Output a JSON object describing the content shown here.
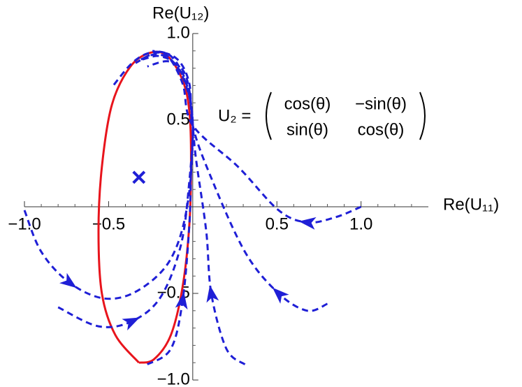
{
  "chart_data": {
    "type": "line",
    "xlabel": "Re(U₁₁)",
    "ylabel": "Re(U₁₂)",
    "xlim": [
      -1.0,
      1.4
    ],
    "ylim": [
      -1.0,
      1.0
    ],
    "xticks": [
      {
        "value": -1.0,
        "label": "−1.0"
      },
      {
        "value": -0.5,
        "label": "−0.5"
      },
      {
        "value": 0.5,
        "label": "0.5"
      },
      {
        "value": 1.0,
        "label": "1.0"
      }
    ],
    "yticks": [
      {
        "value": -1.0,
        "label": "−1.0"
      },
      {
        "value": -0.5,
        "label": "−0.5"
      },
      {
        "value": 0.5,
        "label": "0.5"
      },
      {
        "value": 1.0,
        "label": "1.0"
      }
    ],
    "xminorticks": [
      -0.9,
      -0.8,
      -0.7,
      -0.6,
      -0.4,
      -0.3,
      -0.2,
      -0.1,
      0.1,
      0.2,
      0.3,
      0.4,
      0.6,
      0.7,
      0.8,
      0.9,
      1.1,
      1.2,
      1.3
    ],
    "yminorticks": [
      -0.9,
      -0.8,
      -0.7,
      -0.6,
      -0.4,
      -0.3,
      -0.2,
      -0.1,
      0.1,
      0.2,
      0.3,
      0.4,
      0.6,
      0.7,
      0.8,
      0.9
    ],
    "annotation": {
      "lhs": "U₂ =",
      "matrix": [
        [
          "cos(θ)",
          "−sin(θ)"
        ],
        [
          "sin(θ)",
          "cos(θ)"
        ]
      ]
    },
    "series": [
      {
        "color": "#e8141c",
        "style": "solid",
        "x": [
          -0.32,
          -0.46,
          -0.54,
          -0.56,
          -0.54,
          -0.48,
          -0.37,
          -0.25,
          -0.15,
          -0.06,
          -0.02,
          -0.01,
          -0.02,
          -0.06,
          -0.13,
          -0.23,
          -0.32
        ],
        "y": [
          -0.9,
          -0.74,
          -0.5,
          -0.14,
          0.23,
          0.59,
          0.81,
          0.89,
          0.87,
          0.73,
          0.55,
          0.27,
          -0.1,
          -0.46,
          -0.74,
          -0.88,
          -0.9
        ]
      },
      {
        "color": "#1f1fd6",
        "style": "dashed",
        "arrow": true,
        "x": [
          1.0,
          0.85,
          0.68,
          0.51,
          0.27,
          0,
          -0.06,
          -0.15,
          -0.25,
          -0.36,
          -0.48
        ],
        "y": [
          0,
          -0.06,
          -0.09,
          -0.02,
          0.23,
          0.47,
          0.71,
          0.87,
          0.89,
          0.83,
          0.69
        ]
      },
      {
        "color": "#1f1fd6",
        "style": "dashed",
        "arrow": true,
        "x": [
          0.8,
          0.68,
          0.51,
          0.31,
          0.1,
          0,
          -0.02,
          -0.09,
          -0.21,
          -0.34
        ],
        "y": [
          -0.56,
          -0.6,
          -0.5,
          -0.26,
          0.19,
          0.47,
          0.71,
          0.85,
          0.89,
          0.83
        ]
      },
      {
        "color": "#1f1fd6",
        "style": "dashed",
        "arrow": true,
        "x": [
          0.31,
          0.2,
          0.11,
          0.08,
          0.02,
          0,
          -0.02,
          -0.06,
          -0.15,
          -0.27
        ],
        "y": [
          -0.91,
          -0.82,
          -0.5,
          -0.14,
          0.27,
          0.47,
          0.67,
          0.79,
          0.84,
          0.81
        ]
      },
      {
        "color": "#1f1fd6",
        "style": "dashed",
        "arrow": true,
        "x": [
          -1.0,
          -0.9,
          -0.73,
          -0.52,
          -0.32,
          -0.13,
          -0.03,
          0,
          -0.04,
          -0.12,
          -0.22,
          -0.33
        ],
        "y": [
          -0.02,
          -0.26,
          -0.44,
          -0.53,
          -0.48,
          -0.3,
          0.02,
          0.47,
          0.7,
          0.84,
          0.88,
          0.84
        ]
      },
      {
        "color": "#1f1fd6",
        "style": "dashed",
        "arrow": true,
        "x": [
          -0.8,
          -0.56,
          -0.36,
          -0.19,
          -0.07,
          -0.02,
          0,
          -0.03,
          -0.1,
          -0.2,
          -0.3
        ],
        "y": [
          -0.58,
          -0.69,
          -0.66,
          -0.52,
          -0.22,
          0.15,
          0.47,
          0.68,
          0.82,
          0.87,
          0.85
        ]
      },
      {
        "color": "#1f1fd6",
        "style": "dashed",
        "arrow": true,
        "x": [
          -0.27,
          -0.13,
          -0.06,
          -0.02,
          -0.01,
          0,
          -0.04,
          -0.13,
          -0.24
        ],
        "y": [
          -0.91,
          -0.82,
          -0.54,
          -0.1,
          0.23,
          0.47,
          0.72,
          0.87,
          0.9
        ]
      }
    ],
    "points": [
      {
        "x": -0.32,
        "y": 0.17,
        "color": "#1f1fd6"
      }
    ]
  }
}
